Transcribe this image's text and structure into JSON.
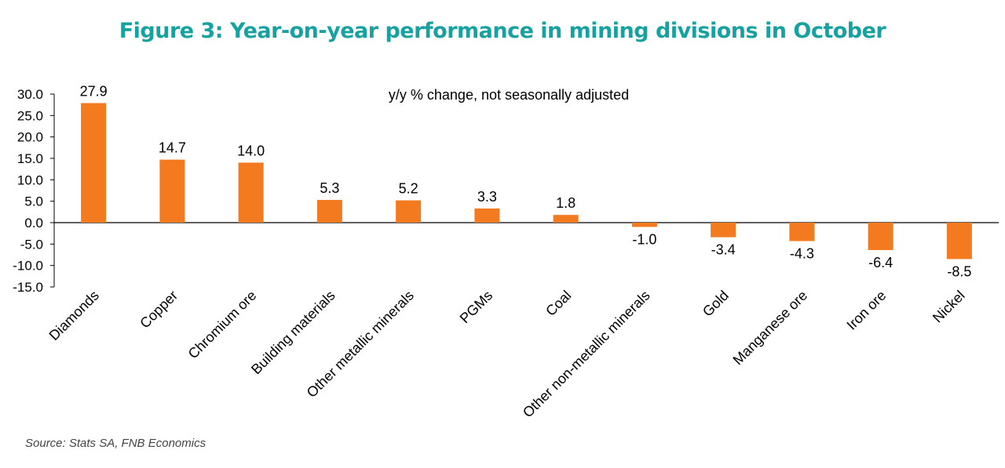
{
  "title": "Figure 3: Year-on-year performance in mining divisions in October",
  "subtitle": "y/y % change, not seasonally adjusted",
  "source": "Source: Stats SA, FNB Economics",
  "colors": {
    "bar": "#f47a20",
    "title": "#17a2a2",
    "axis": "#000000"
  },
  "chart_data": {
    "type": "bar",
    "title": "Figure 3: Year-on-year performance in mining divisions in October",
    "subtitle": "y/y % change, not seasonally adjusted",
    "categories": [
      "Diamonds",
      "Copper",
      "Chromium ore",
      "Building materials",
      "Other metallic minerals",
      "PGMs",
      "Coal",
      "Other non-metallic minerals",
      "Gold",
      "Manganese ore",
      "Iron ore",
      "Nickel"
    ],
    "values": [
      27.9,
      14.7,
      14.0,
      5.3,
      5.2,
      3.3,
      1.8,
      -1.0,
      -3.4,
      -4.3,
      -6.4,
      -8.5
    ],
    "data_labels": [
      "27.9",
      "14.7",
      "14.0",
      "5.3",
      "5.2",
      "3.3",
      "1.8",
      "-1.0",
      "-3.4",
      "-4.3",
      "-6.4",
      "-8.5"
    ],
    "ylim": [
      -15,
      30
    ],
    "yticks": [
      30,
      25,
      20,
      15,
      10,
      5,
      0,
      -5,
      -10,
      -15
    ],
    "ytick_labels": [
      "30.0",
      "25.0",
      "20.0",
      "15.0",
      "10.0",
      "5.0",
      "0.0",
      "-5.0",
      "-10.0",
      "-15.0"
    ],
    "grid": false,
    "legend": "none"
  }
}
